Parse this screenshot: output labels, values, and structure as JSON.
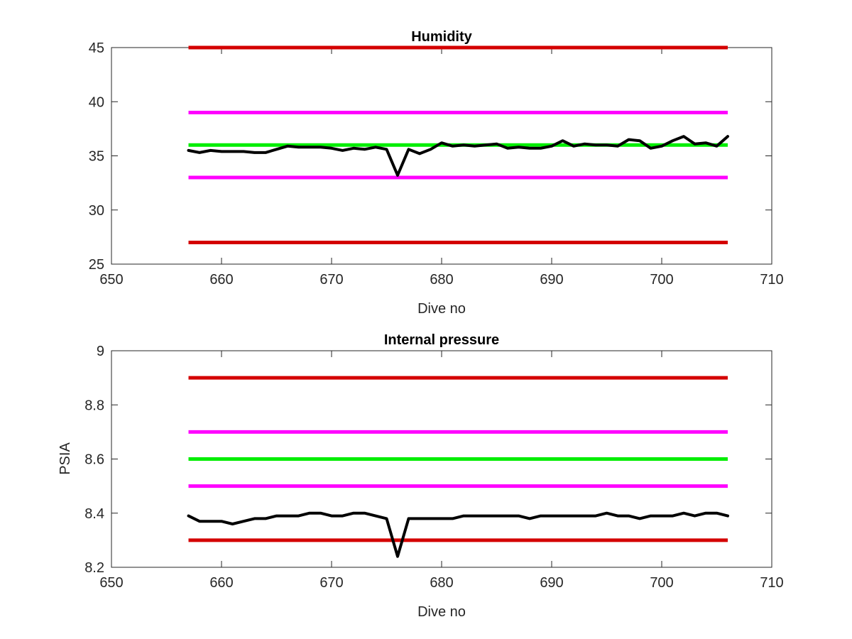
{
  "colors": {
    "red_limit": "#d40000",
    "magenta_limit": "#ff00ff",
    "green_nominal": "#00ee00",
    "data_line": "#000000",
    "axis": "#262626"
  },
  "chart_data": [
    {
      "type": "line",
      "title": "Humidity",
      "xlabel": "Dive no",
      "ylabel": "",
      "xlim": [
        650,
        710
      ],
      "ylim": [
        25,
        45
      ],
      "xticks": [
        650,
        660,
        670,
        680,
        690,
        700,
        710
      ],
      "yticks": [
        25,
        30,
        35,
        40,
        45
      ],
      "grid": false,
      "reference_lines": [
        {
          "y": 45,
          "x_start": 657,
          "x_end": 706,
          "color_key": "red_limit"
        },
        {
          "y": 39,
          "x_start": 657,
          "x_end": 706,
          "color_key": "magenta_limit"
        },
        {
          "y": 36,
          "x_start": 657,
          "x_end": 706,
          "color_key": "green_nominal"
        },
        {
          "y": 33,
          "x_start": 657,
          "x_end": 706,
          "color_key": "magenta_limit"
        },
        {
          "y": 27,
          "x_start": 657,
          "x_end": 706,
          "color_key": "red_limit"
        }
      ],
      "series": [
        {
          "x": [
            657,
            658,
            659,
            660,
            661,
            662,
            663,
            664,
            665,
            666,
            667,
            668,
            669,
            670,
            671,
            672,
            673,
            674,
            675,
            676,
            677,
            678,
            679,
            680,
            681,
            682,
            683,
            684,
            685,
            686,
            687,
            688,
            689,
            690,
            691,
            692,
            693,
            694,
            695,
            696,
            697,
            698,
            699,
            700,
            701,
            702,
            703,
            704,
            705,
            706
          ],
          "values": [
            35.5,
            35.3,
            35.5,
            35.4,
            35.4,
            35.4,
            35.3,
            35.3,
            35.6,
            35.9,
            35.8,
            35.8,
            35.8,
            35.7,
            35.5,
            35.7,
            35.6,
            35.8,
            35.6,
            33.2,
            35.6,
            35.2,
            35.6,
            36.2,
            35.9,
            36.0,
            35.9,
            36.0,
            36.1,
            35.7,
            35.8,
            35.7,
            35.7,
            35.9,
            36.4,
            35.9,
            36.1,
            36.0,
            36.0,
            35.9,
            36.5,
            36.4,
            35.7,
            35.9,
            36.4,
            36.8,
            36.1,
            36.2,
            35.9,
            36.8
          ]
        }
      ]
    },
    {
      "type": "line",
      "title": "Internal pressure",
      "xlabel": "Dive no",
      "ylabel": "PSIA",
      "xlim": [
        650,
        710
      ],
      "ylim": [
        8.2,
        9.0
      ],
      "xticks": [
        650,
        660,
        670,
        680,
        690,
        700,
        710
      ],
      "yticks": [
        8.2,
        8.4,
        8.6,
        8.8,
        9.0
      ],
      "ytick_labels": [
        "8.2",
        "8.4",
        "8.6",
        "8.8",
        "9"
      ],
      "grid": false,
      "reference_lines": [
        {
          "y": 8.9,
          "x_start": 657,
          "x_end": 706,
          "color_key": "red_limit"
        },
        {
          "y": 8.7,
          "x_start": 657,
          "x_end": 706,
          "color_key": "magenta_limit"
        },
        {
          "y": 8.6,
          "x_start": 657,
          "x_end": 706,
          "color_key": "green_nominal"
        },
        {
          "y": 8.5,
          "x_start": 657,
          "x_end": 706,
          "color_key": "magenta_limit"
        },
        {
          "y": 8.3,
          "x_start": 657,
          "x_end": 706,
          "color_key": "red_limit"
        }
      ],
      "series": [
        {
          "x": [
            657,
            658,
            659,
            660,
            661,
            662,
            663,
            664,
            665,
            666,
            667,
            668,
            669,
            670,
            671,
            672,
            673,
            674,
            675,
            676,
            677,
            678,
            679,
            680,
            681,
            682,
            683,
            684,
            685,
            686,
            687,
            688,
            689,
            690,
            691,
            692,
            693,
            694,
            695,
            696,
            697,
            698,
            699,
            700,
            701,
            702,
            703,
            704,
            705,
            706
          ],
          "values": [
            8.39,
            8.37,
            8.37,
            8.37,
            8.36,
            8.37,
            8.38,
            8.38,
            8.39,
            8.39,
            8.39,
            8.4,
            8.4,
            8.39,
            8.39,
            8.4,
            8.4,
            8.39,
            8.38,
            8.24,
            8.38,
            8.38,
            8.38,
            8.38,
            8.38,
            8.39,
            8.39,
            8.39,
            8.39,
            8.39,
            8.39,
            8.38,
            8.39,
            8.39,
            8.39,
            8.39,
            8.39,
            8.39,
            8.4,
            8.39,
            8.39,
            8.38,
            8.39,
            8.39,
            8.39,
            8.4,
            8.39,
            8.4,
            8.4,
            8.39
          ]
        }
      ]
    }
  ]
}
